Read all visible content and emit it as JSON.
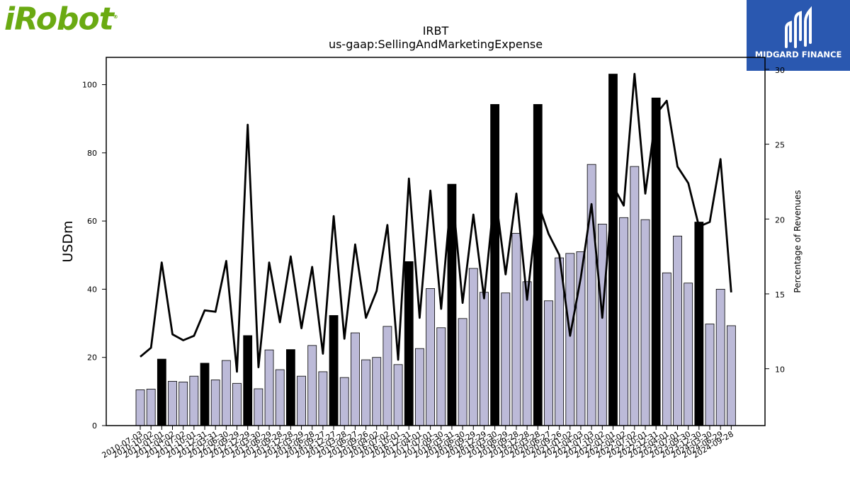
{
  "branding": {
    "left_logo_text": "iRobot",
    "left_logo_color": "#6aaa12",
    "right_logo_text": "MIDGARD FINANCE",
    "right_logo_bg": "#2a58b0"
  },
  "chart_data": {
    "type": "bar",
    "title": "IRBT",
    "subtitle": "us-gaap:SellingAndMarketingExpense",
    "ylabel": "USDm",
    "y2label": "Percentage of Revenues",
    "ylim": [
      0,
      108
    ],
    "y2lim": [
      6.2,
      30.8
    ],
    "yticks": [
      0,
      20,
      40,
      60,
      80,
      100
    ],
    "y2ticks": [
      10,
      15,
      20,
      25,
      30
    ],
    "colors": {
      "quarter_bar": "#bcbad8",
      "annual_bar": "#000000",
      "line": "#000000"
    },
    "x_tick_labels": [
      "2010-07-03",
      "2010-10-02",
      "2011-01-01",
      "2011-04-02",
      "2011-07-02",
      "2011-10-01",
      "2011-12-31",
      "2012-03-31",
      "2012-06-30",
      "2012-09-29",
      "2012-12-29",
      "2013-03-30",
      "2013-06-29",
      "2013-09-28",
      "2013-12-28",
      "2014-03-29",
      "2014-06-28",
      "2014-09-27",
      "2014-12-27",
      "2015-03-28",
      "2015-06-27",
      "2015-09-26",
      "2016-04-02",
      "2016-07-02",
      "2016-10-01",
      "2016-12-31",
      "2017-04-01",
      "2017-07-01",
      "2017-09-30",
      "2018-03-31",
      "2018-06-30",
      "2018-09-29",
      "2018-12-29",
      "2019-03-30",
      "2019-06-29",
      "2019-09-28",
      "2019-12-28",
      "2020-03-28",
      "2020-06-27",
      "2020-09-26",
      "2021-01-02",
      "2021-04-03",
      "2021-07-03",
      "2021-10-02",
      "2022-01-01",
      "2022-04-02",
      "2022-07-02",
      "2022-10-01",
      "2022-12-31",
      "2023-04-01",
      "2023-07-01",
      "2023-09-30",
      "2023-12-30",
      "2024-03-30",
      "2024-06-29",
      "2024-09-28"
    ],
    "values": [
      10.5,
      10.7,
      19.5,
      13.0,
      12.8,
      14.5,
      18.3,
      13.4,
      19.1,
      12.4,
      26.4,
      10.8,
      22.2,
      16.4,
      22.3,
      14.5,
      23.5,
      15.8,
      32.3,
      14.1,
      27.2,
      19.3,
      20.0,
      29.1,
      17.9,
      48.1,
      22.6,
      40.2,
      28.7,
      70.8,
      31.4,
      46.1,
      39.1,
      94.2,
      38.9,
      56.4,
      42.2,
      94.2,
      36.6,
      49.2,
      50.5,
      51.0,
      76.6,
      59.1,
      103.1,
      61.0,
      76.0,
      60.4,
      96.1,
      44.8,
      55.6,
      41.8,
      59.7,
      29.8,
      40.0,
      29.3
    ],
    "annual": [
      false,
      false,
      true,
      false,
      false,
      false,
      true,
      false,
      false,
      false,
      true,
      false,
      false,
      false,
      true,
      false,
      false,
      false,
      true,
      false,
      false,
      false,
      false,
      false,
      false,
      true,
      false,
      false,
      false,
      true,
      false,
      false,
      false,
      true,
      false,
      false,
      false,
      true,
      false,
      false,
      false,
      false,
      false,
      false,
      true,
      false,
      false,
      false,
      true,
      false,
      false,
      false,
      true,
      false,
      false,
      false
    ],
    "pct_of_revenue": [
      10.8,
      11.4,
      17.1,
      12.3,
      11.9,
      12.2,
      13.9,
      13.8,
      17.2,
      9.8,
      26.3,
      10.1,
      17.1,
      13.1,
      17.5,
      12.7,
      16.8,
      11.0,
      20.2,
      12.0,
      18.3,
      13.4,
      15.2,
      19.6,
      10.6,
      22.7,
      13.4,
      21.9,
      14.0,
      22.1,
      14.4,
      20.3,
      14.7,
      21.9,
      16.3,
      21.7,
      14.6,
      21.1,
      19.0,
      17.6,
      12.2,
      16.1,
      21.0,
      13.4,
      22.2,
      20.9,
      29.7,
      21.7,
      27.0,
      27.9,
      23.5,
      22.4,
      19.5,
      19.8,
      24.0,
      15.1
    ]
  }
}
